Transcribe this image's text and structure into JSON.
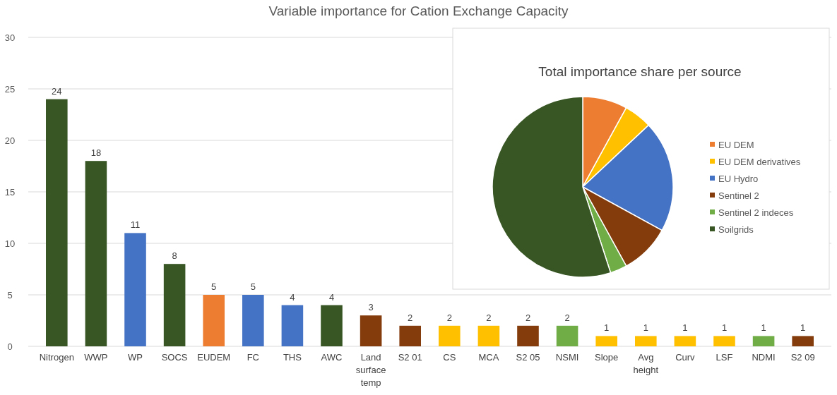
{
  "chart_data": [
    {
      "type": "bar",
      "title": "Variable importance for Cation Exchange Capacity",
      "categories": [
        "Nitrogen",
        "WWP",
        "WP",
        "SOCS",
        "EUDEM",
        "FC",
        "THS",
        "AWC",
        "Land surface temp",
        "S2 01",
        "CS",
        "MCA",
        "S2 05",
        "NSMI",
        "Slope",
        "Avg height",
        "Curv",
        "LSF",
        "NDMI",
        "S2 09"
      ],
      "values": [
        24,
        18,
        11,
        8,
        5,
        5,
        4,
        4,
        3,
        2,
        2,
        2,
        2,
        2,
        1,
        1,
        1,
        1,
        1,
        1
      ],
      "colors": [
        "#375623",
        "#375623",
        "#4472c4",
        "#375623",
        "#ed7d31",
        "#4472c4",
        "#4472c4",
        "#375623",
        "#843c0c",
        "#843c0c",
        "#ffc000",
        "#ffc000",
        "#843c0c",
        "#70ad47",
        "#ffc000",
        "#ffc000",
        "#ffc000",
        "#ffc000",
        "#70ad47",
        "#843c0c"
      ],
      "ylim": [
        0,
        30
      ],
      "yticks": [
        0,
        5,
        10,
        15,
        20,
        25,
        30
      ],
      "grid": "y",
      "data_labels": true
    },
    {
      "type": "pie",
      "title": "Total importance share per source",
      "categories": [
        "EU DEM",
        "EU DEM derivatives",
        "EU Hydro",
        "Sentinel 2",
        "Sentinel 2 indeces",
        "Soilgrids"
      ],
      "values": [
        8,
        5,
        20,
        9,
        3,
        55
      ],
      "colors": [
        "#ed7d31",
        "#ffc000",
        "#4472c4",
        "#843c0c",
        "#70ad47",
        "#375623"
      ],
      "legend": "right"
    }
  ]
}
